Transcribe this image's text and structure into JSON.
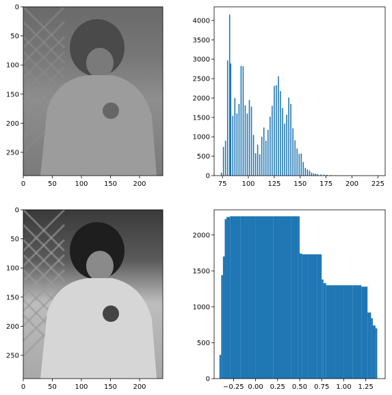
{
  "chart_data": [
    {
      "type": "image",
      "xlim": [
        0,
        240
      ],
      "ylim": [
        290,
        0
      ],
      "xticks": [
        "0",
        "50",
        "100",
        "150",
        "200"
      ],
      "yticks": [
        "0",
        "50",
        "100",
        "150",
        "200",
        "250"
      ],
      "content": "grayscale photo (low contrast)"
    },
    {
      "type": "bar",
      "xlim": [
        67,
        232
      ],
      "ylim": [
        0,
        4350
      ],
      "xticks": [
        "75",
        "100",
        "125",
        "150",
        "175",
        "200",
        "225"
      ],
      "yticks": [
        "0",
        "500",
        "1000",
        "1500",
        "2000",
        "2500",
        "3000",
        "3500",
        "4000"
      ],
      "bar_color": "#1f77b4",
      "x": [
        74,
        76,
        78,
        80,
        82,
        83,
        85,
        87,
        89,
        91,
        93,
        95,
        97,
        99,
        101,
        103,
        105,
        107,
        109,
        111,
        113,
        115,
        117,
        119,
        121,
        123,
        125,
        127,
        129,
        131,
        133,
        135,
        137,
        139,
        141,
        143,
        145,
        147,
        149,
        151,
        153,
        155,
        157,
        159,
        161,
        163,
        165,
        167,
        170,
        173,
        176,
        180,
        184,
        188
      ],
      "values": [
        80,
        740,
        900,
        2970,
        4150,
        2890,
        1540,
        2000,
        1600,
        1850,
        2830,
        2820,
        1810,
        1600,
        1950,
        1780,
        1050,
        580,
        800,
        550,
        1000,
        1240,
        900,
        1180,
        1520,
        1800,
        2310,
        2330,
        2560,
        2180,
        1740,
        1340,
        1570,
        2010,
        1850,
        1220,
        910,
        700,
        560,
        570,
        350,
        200,
        160,
        130,
        80,
        60,
        50,
        40,
        30,
        25,
        20,
        15,
        10,
        8
      ]
    },
    {
      "type": "image",
      "xlim": [
        0,
        240
      ],
      "ylim": [
        290,
        0
      ],
      "xticks": [
        "0",
        "50",
        "100",
        "150",
        "200"
      ],
      "yticks": [
        "0",
        "50",
        "100",
        "150",
        "200",
        "250"
      ],
      "content": "grayscale photo (equalized contrast)"
    },
    {
      "type": "bar",
      "xlim": [
        -0.47,
        1.47
      ],
      "ylim": [
        0,
        2350
      ],
      "xticks": [
        "−0.25",
        "0.00",
        "0.25",
        "0.50",
        "0.75",
        "1.00",
        "1.25"
      ],
      "yticks": [
        "0",
        "500",
        "1000",
        "1500",
        "2000"
      ],
      "bar_color": "#1f77b4",
      "x": [
        -0.41,
        -0.39,
        -0.37,
        -0.35,
        -0.33,
        -0.29,
        -0.17,
        0.0,
        0.2,
        0.4,
        0.48,
        0.5,
        0.53,
        0.6,
        0.7,
        0.75,
        0.77,
        0.8,
        0.9,
        1.0,
        1.1,
        1.2,
        1.27,
        1.31,
        1.33,
        1.36
      ],
      "values": [
        330,
        1440,
        1700,
        2220,
        2250,
        2260,
        2260,
        2260,
        2260,
        2260,
        2260,
        1740,
        1730,
        1730,
        1730,
        1380,
        1330,
        1300,
        1300,
        1300,
        1300,
        1280,
        920,
        840,
        740,
        700
      ]
    }
  ]
}
